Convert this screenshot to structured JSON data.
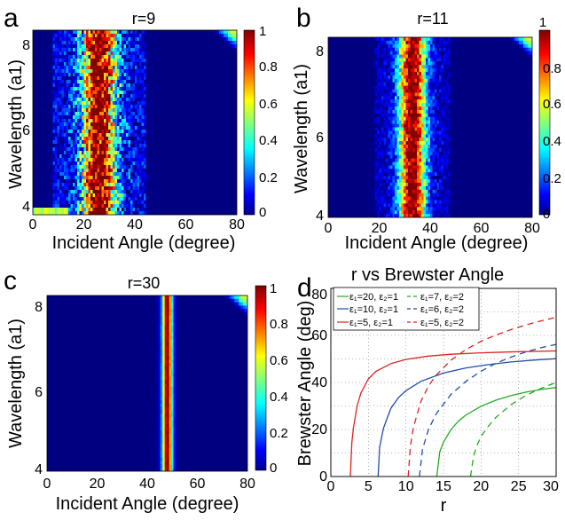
{
  "chart_data": [
    {
      "type": "heatmap",
      "panel_label": "a",
      "title": "r=9",
      "xlabel": "Incident Angle (degree)",
      "ylabel": "Wavelength (a1)",
      "xlim": [
        0,
        80
      ],
      "ylim": [
        3.9,
        8.3
      ],
      "xticks": [
        "0",
        "20",
        "40",
        "60",
        "80"
      ],
      "yticks": [
        "4",
        "6",
        "8"
      ],
      "colorbar": {
        "range": [
          0,
          1
        ],
        "ticks": [
          "0",
          "0.2",
          "0.4",
          "0.6",
          "0.8",
          "1"
        ]
      },
      "peak_angle": 26,
      "band_width": 6,
      "noise": "high",
      "hot_corner": "top-right"
    },
    {
      "type": "heatmap",
      "panel_label": "b",
      "title": "r=11",
      "xlabel": "Incident Angle (degree)",
      "ylabel": "Wavelength (a1)",
      "xlim": [
        0,
        80
      ],
      "ylim": [
        4,
        8.3
      ],
      "xticks": [
        "0",
        "20",
        "40",
        "60",
        "80"
      ],
      "yticks": [
        "4",
        "6",
        "8"
      ],
      "colorbar": {
        "range": [
          0,
          1
        ],
        "ticks": [
          "0",
          "0.2",
          "0.4",
          "0.6",
          "0.8",
          "1"
        ]
      },
      "peak_angle": 33,
      "band_width": 5,
      "noise": "medium",
      "hot_corner": "top-right"
    },
    {
      "type": "heatmap",
      "panel_label": "c",
      "title": "r=30",
      "xlabel": "Incident Angle (degree)",
      "ylabel": "Wavelength (a1)",
      "xlim": [
        0,
        80
      ],
      "ylim": [
        4,
        8.3
      ],
      "xticks": [
        "0",
        "20",
        "40",
        "60",
        "80"
      ],
      "yticks": [
        "4",
        "6",
        "8"
      ],
      "colorbar": {
        "range": [
          0,
          1
        ],
        "ticks": [
          "0",
          "0.2",
          "0.4",
          "0.6",
          "0.8",
          "1"
        ]
      },
      "peak_angle": 48,
      "band_width": 2,
      "noise": "low",
      "hot_corner": "top-right"
    },
    {
      "type": "line",
      "panel_label": "d",
      "title": "r vs Brewster Angle",
      "xlabel": "r",
      "ylabel": "Brewster Angle (deg)",
      "xlim": [
        0,
        30
      ],
      "ylim": [
        0,
        80
      ],
      "xticks": [
        "0",
        "5",
        "10",
        "15",
        "20",
        "25",
        "30"
      ],
      "yticks": [
        "0",
        "20",
        "40",
        "60",
        "80"
      ],
      "grid": true,
      "legend_position": "top-left",
      "series": [
        {
          "name": "ε₁=20, ε₂=1",
          "color": "#22aa22",
          "dash": false,
          "x": [
            14.1,
            14.5,
            15,
            16,
            17,
            18,
            20,
            22,
            24,
            26,
            28,
            30
          ],
          "y": [
            0,
            10.5,
            14.6,
            20.0,
            23.6,
            26.2,
            29.9,
            32.5,
            34.4,
            35.9,
            37.0,
            37.9
          ]
        },
        {
          "name": "ε₁=7, ε₂=2",
          "color": "#22aa22",
          "dash": true,
          "x": [
            18.6,
            19,
            19.5,
            20,
            21,
            22,
            24,
            26,
            28,
            30
          ],
          "y": [
            0,
            8.7,
            13.5,
            17.0,
            21.5,
            25.2,
            30.6,
            34.5,
            37.5,
            40.0
          ]
        },
        {
          "name": "ε₁=10, ε₂=1",
          "color": "#1f4fa8",
          "dash": false,
          "x": [
            6.3,
            6.5,
            7,
            8,
            9,
            10,
            12,
            15,
            18,
            21,
            24,
            27,
            30
          ],
          "y": [
            0,
            12.5,
            20.5,
            29.0,
            33.5,
            36.5,
            40.5,
            44.0,
            46.2,
            47.6,
            48.7,
            49.5,
            50.1
          ]
        },
        {
          "name": "ε₁=6, ε₂=2",
          "color": "#1f4fa8",
          "dash": true,
          "x": [
            11.8,
            12.2,
            13,
            14,
            16,
            18,
            20,
            22,
            24,
            26,
            28,
            30
          ],
          "y": [
            0,
            11.5,
            20.0,
            26.5,
            35.0,
            40.5,
            44.8,
            48.2,
            50.8,
            53.0,
            54.8,
            56.2
          ]
        },
        {
          "name": "ε₁=5, ε₂=1",
          "color": "#e02020",
          "dash": false,
          "x": [
            2.6,
            2.8,
            3,
            3.5,
            4,
            5,
            6,
            8,
            10,
            13,
            16,
            20,
            25,
            30
          ],
          "y": [
            0,
            14.5,
            20.5,
            30.0,
            35.5,
            41.5,
            44.7,
            48.0,
            49.8,
            51.2,
            52.0,
            52.6,
            53.1,
            53.4
          ]
        },
        {
          "name": "ε₁=5, ε₂=2",
          "color": "#e02020",
          "dash": true,
          "x": [
            10.3,
            10.6,
            11,
            12,
            13,
            14,
            16,
            18,
            20,
            22,
            24,
            26,
            28,
            30
          ],
          "y": [
            0,
            13.0,
            21.0,
            32.0,
            38.5,
            43.0,
            49.5,
            54.0,
            57.5,
            60.2,
            62.5,
            64.5,
            66.2,
            67.7
          ]
        }
      ]
    }
  ]
}
